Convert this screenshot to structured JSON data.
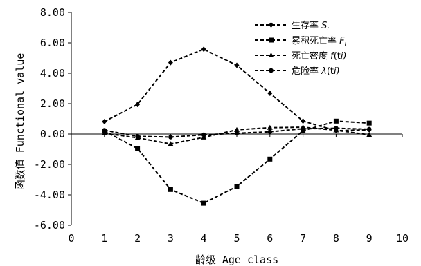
{
  "chart_data": {
    "type": "line",
    "xlabel": "龄级 Age class",
    "ylabel": "函数值 Functional value",
    "xlim": [
      0,
      10
    ],
    "ylim": [
      -6,
      8
    ],
    "x_ticks": [
      "0",
      "1",
      "2",
      "3",
      "4",
      "5",
      "6",
      "7",
      "8",
      "9",
      "10"
    ],
    "y_ticks": [
      "-6.00",
      "-4.00",
      "-2.00",
      "0.00",
      "2.00",
      "4.00",
      "6.00",
      "8.00"
    ],
    "grid": false,
    "legend_position": "top-right",
    "x": [
      1,
      2,
      3,
      4,
      5,
      6,
      7,
      8,
      9
    ],
    "series": [
      {
        "name": "生存率 Si",
        "label_base": "生存率 ",
        "label_var": "S",
        "label_sub": "i",
        "marker": "diamond",
        "values": [
          0.82,
          1.95,
          4.7,
          5.58,
          4.52,
          2.68,
          0.85,
          0.22,
          0.28
        ]
      },
      {
        "name": "累积死亡率 Fi",
        "label_base": "累积死亡率 ",
        "label_var": "F",
        "label_sub": "i",
        "marker": "square",
        "values": [
          0.2,
          -0.95,
          -3.65,
          -4.55,
          -3.45,
          -1.65,
          0.22,
          0.85,
          0.72
        ]
      },
      {
        "name": "死亡密度 f(ti)",
        "label_base": "死亡密度 ",
        "label_var": "f",
        "label_sub": "(t",
        "label_tail": "i)",
        "marker": "triangle",
        "values": [
          0.05,
          -0.25,
          -0.65,
          -0.22,
          0.28,
          0.42,
          0.45,
          0.25,
          -0.05
        ]
      },
      {
        "name": "危险率 λ(ti)",
        "label_base": "危险率 ",
        "label_var": "λ",
        "label_sub": "(t",
        "label_tail": "i)",
        "marker": "circle",
        "values": [
          0.25,
          -0.15,
          -0.2,
          -0.05,
          0.05,
          0.15,
          0.35,
          0.38,
          0.32
        ]
      }
    ]
  }
}
